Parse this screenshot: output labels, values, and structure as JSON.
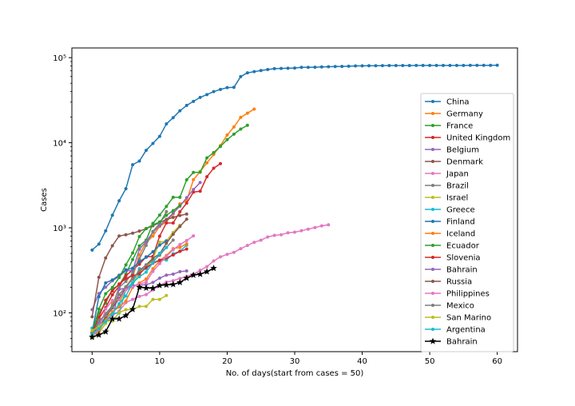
{
  "chart_data": {
    "type": "line",
    "title": "",
    "xlabel": "No. of days(start from cases = 50)",
    "ylabel": "Cases",
    "yscale": "log",
    "xlim": [
      -3,
      63
    ],
    "ylim": [
      35,
      130000
    ],
    "xticks": [
      0,
      10,
      20,
      30,
      40,
      50,
      60
    ],
    "yticks": [
      {
        "value": 100,
        "label": "10²"
      },
      {
        "value": 1000,
        "label": "10³"
      },
      {
        "value": 10000,
        "label": "10⁴"
      },
      {
        "value": 100000,
        "label": "10⁵"
      }
    ],
    "grid": false,
    "legend_position": "center-right",
    "series": [
      {
        "name": "China",
        "color": "#1f77b4",
        "marker": "dot",
        "y": [
          548,
          643,
          920,
          1406,
          2075,
          2877,
          5509,
          6087,
          8141,
          9802,
          11891,
          16630,
          19716,
          23707,
          27440,
          30587,
          34110,
          36814,
          39829,
          42354,
          44386,
          44759,
          59895,
          66358,
          68413,
          70513,
          72434,
          74211,
          74619,
          75077,
          75550,
          77001,
          77022,
          77241,
          77754,
          78166,
          78600,
          78928,
          79356,
          79932,
          80136,
          80261,
          80386,
          80537,
          80690,
          80770,
          80823,
          80860,
          80887,
          80921,
          80932,
          80945,
          80977,
          81003,
          81033,
          81058,
          81102,
          81156,
          81250,
          81305,
          81435
        ]
      },
      {
        "name": "Germany",
        "color": "#ff7f0e",
        "marker": "dot",
        "y": [
          57,
          68,
          79,
          130,
          165,
          203,
          262,
          482,
          670,
          799,
          1040,
          1176,
          1457,
          1908,
          2078,
          3675,
          4585,
          5795,
          7272,
          9257,
          12327,
          15320,
          19848,
          22213,
          24873
        ]
      },
      {
        "name": "France",
        "color": "#2ca02c",
        "marker": "dot",
        "y": [
          57,
          100,
          130,
          191,
          212,
          285,
          423,
          613,
          716,
          1126,
          1412,
          1784,
          2281,
          2281,
          3661,
          4469,
          4499,
          6633,
          7652,
          9043,
          10871,
          12612,
          14459,
          16018
        ]
      },
      {
        "name": "United Kingdom",
        "color": "#d62728",
        "marker": "dot",
        "y": [
          51,
          85,
          115,
          163,
          206,
          273,
          321,
          373,
          456,
          460,
          798,
          1140,
          1140,
          1543,
          1950,
          2626,
          2689,
          3983,
          5018,
          5683
        ]
      },
      {
        "name": "Belgium",
        "color": "#9467bd",
        "marker": "dot",
        "y": [
          109,
          169,
          200,
          239,
          267,
          314,
          314,
          559,
          689,
          886,
          1058,
          1243,
          1486,
          1795,
          2257,
          2815,
          3401
        ]
      },
      {
        "name": "Denmark",
        "color": "#8c564b",
        "marker": "dot",
        "y": [
          90,
          262,
          442,
          615,
          801,
          827,
          864,
          914,
          977,
          1057,
          1151,
          1255,
          1326,
          1395,
          1450
        ]
      },
      {
        "name": "Japan",
        "color": "#e377c2",
        "marker": "dot",
        "y": [
          66,
          73,
          84,
          93,
          105,
          132,
          144,
          156,
          164,
          186,
          210,
          230,
          239,
          254,
          268,
          284,
          317,
          349,
          408,
          455,
          488,
          514,
          568,
          620,
          675,
          716,
          780,
          814,
          829,
          873,
          889,
          924,
          963,
          1007,
          1054,
          1086
        ]
      },
      {
        "name": "Brazil",
        "color": "#7f7f7f",
        "marker": "dot",
        "y": [
          52,
          77,
          98,
          121,
          200,
          234,
          291,
          428,
          621,
          904,
          1128,
          1546
        ]
      },
      {
        "name": "Israel",
        "color": "#bcbd22",
        "marker": "dot",
        "y": [
          50,
          58,
          75,
          100,
          126,
          193,
          213,
          298,
          337,
          433,
          677,
          705,
          883,
          1071
        ]
      },
      {
        "name": "Greece",
        "color": "#17becf",
        "marker": "dot",
        "y": [
          66,
          73,
          89,
          99,
          99,
          190,
          228,
          331,
          331,
          387,
          418,
          418,
          495,
          530,
          624
        ]
      },
      {
        "name": "Finland",
        "color": "#1f77b4",
        "marker": "dot",
        "y": [
          59,
          155,
          225,
          244,
          277,
          321,
          336,
          400,
          450,
          523,
          626,
          700
        ]
      },
      {
        "name": "Iceland",
        "color": "#ff7f0e",
        "marker": "dot",
        "y": [
          55,
          60,
          85,
          103,
          117,
          138,
          199,
          225,
          250,
          330,
          409,
          473,
          568,
          588,
          648
        ]
      },
      {
        "name": "Ecuador",
        "color": "#2ca02c",
        "marker": "dot",
        "y": [
          58,
          111,
          168,
          199,
          260,
          367,
          506,
          789,
          981,
          1082,
          1173,
          1403,
          1595,
          1823
        ]
      },
      {
        "name": "Slovenia",
        "color": "#d62728",
        "marker": "dot",
        "y": [
          57,
          89,
          141,
          181,
          219,
          253,
          275,
          286,
          341,
          383,
          414,
          442,
          480,
          528,
          562
        ]
      },
      {
        "name": "Bahrain",
        "color": "#9467bd",
        "marker": "dot",
        "y": [
          56,
          78,
          79,
          85,
          189,
          195,
          210,
          212,
          214,
          228,
          256,
          278,
          285,
          305,
          311
        ]
      },
      {
        "name": "Russia",
        "color": "#8c564b",
        "marker": "dot",
        "y": [
          59,
          63,
          90,
          114,
          147,
          199,
          253,
          306,
          367,
          438,
          495,
          658,
          840,
          1036,
          1264
        ]
      },
      {
        "name": "Philippines",
        "color": "#e377c2",
        "marker": "dot",
        "y": [
          52,
          64,
          111,
          140,
          142,
          187,
          202,
          217,
          230,
          307,
          380,
          462,
          552,
          636,
          707,
          803
        ]
      },
      {
        "name": "Mexico",
        "color": "#7f7f7f",
        "marker": "dot",
        "y": [
          53,
          82,
          93,
          118,
          164,
          203,
          251,
          316,
          367,
          405,
          475,
          585,
          717
        ]
      },
      {
        "name": "San Marino",
        "color": "#bcbd22",
        "marker": "dot",
        "y": [
          62,
          69,
          80,
          80,
          101,
          109,
          109,
          119,
          119,
          144,
          144,
          160
        ]
      },
      {
        "name": "Argentina",
        "color": "#17becf",
        "marker": "dot",
        "y": [
          56,
          65,
          79,
          97,
          128,
          158,
          225,
          266,
          301,
          387,
          502,
          589
        ]
      },
      {
        "name": "Bahrain",
        "color": "#000000",
        "marker": "star",
        "y": [
          52,
          55,
          60,
          85,
          85,
          93,
          110,
          200,
          196,
          195,
          210,
          213,
          216,
          228,
          256,
          278,
          285,
          305,
          335
        ]
      }
    ]
  }
}
